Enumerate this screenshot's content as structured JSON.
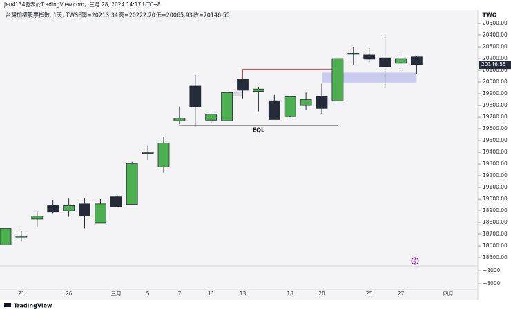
{
  "header": {
    "byline": "jen4134發表於TradingView.com，三月 28, 2024 14:17 UTC+8",
    "symbol": "台灣加權股票指數, 1天, TWSE",
    "ohlc": [
      "開=20213.34",
      "高=20222.20",
      "低=20065.93",
      "收=20146.55"
    ],
    "exchange_badge": "TWO",
    "brand": "TradingView"
  },
  "chart_data": {
    "type": "candlestick",
    "categories": [
      null,
      "21",
      null,
      null,
      "26",
      null,
      null,
      "三月",
      null,
      "5",
      null,
      "7",
      null,
      "11",
      null,
      "13",
      null,
      null,
      "18",
      null,
      "20",
      null,
      null,
      "25",
      null,
      "27",
      null,
      null,
      "四月"
    ],
    "open": [
      18610,
      18680,
      18830,
      18950,
      18900,
      18960,
      18795,
      19020,
      18955,
      19395,
      19275,
      19670,
      19965,
      19675,
      19670,
      20025,
      19920,
      19840,
      19705,
      19800,
      19875,
      19840,
      20240,
      20230,
      20205,
      20160,
      20213.34,
      null,
      null
    ],
    "high": [
      18750,
      18730,
      18895,
      18990,
      19005,
      19010,
      19000,
      19030,
      19320,
      19455,
      19530,
      19790,
      20060,
      19730,
      19915,
      20030,
      19960,
      19890,
      19880,
      19910,
      19985,
      20200,
      20300,
      20290,
      20400,
      20250,
      20222.2,
      null,
      null
    ],
    "low": [
      18610,
      18640,
      18760,
      18880,
      18850,
      18750,
      18795,
      18930,
      18955,
      19335,
      19225,
      19640,
      19620,
      19650,
      19670,
      19855,
      19750,
      19680,
      19700,
      19760,
      19730,
      19840,
      20145,
      20170,
      19960,
      20100,
      20065.93,
      null,
      null
    ],
    "close": [
      18750,
      18685,
      18855,
      18890,
      18945,
      18860,
      18960,
      18935,
      19305,
      19400,
      19480,
      19690,
      19790,
      19725,
      19910,
      19930,
      19940,
      19680,
      19875,
      19850,
      19775,
      20200,
      20245,
      20195,
      20130,
      20200,
      20146.55,
      null,
      null
    ],
    "up_color": "#4caf50",
    "down_color": "#262b39",
    "ylim": [
      18465,
      20612
    ],
    "yticks": [
      {
        "value": 18500,
        "label": "18500.00"
      },
      {
        "value": 18600,
        "label": "18600.00"
      },
      {
        "value": 18700,
        "label": "18700.00"
      },
      {
        "value": 18800,
        "label": "18800.00"
      },
      {
        "value": 18900,
        "label": "18900.00"
      },
      {
        "value": 19000,
        "label": "19000.00"
      },
      {
        "value": 19100,
        "label": "19100.00"
      },
      {
        "value": 19200,
        "label": "19200.00"
      },
      {
        "value": 19300,
        "label": "19300.00"
      },
      {
        "value": 19400,
        "label": "19400.00"
      },
      {
        "value": 19500,
        "label": "19500.00"
      },
      {
        "value": 19600,
        "label": "19600.00"
      },
      {
        "value": 19700,
        "label": "19700.00"
      },
      {
        "value": 19800,
        "label": "19800.00"
      },
      {
        "value": 19900,
        "label": "19900.00"
      },
      {
        "value": 20000,
        "label": "20000.00"
      },
      {
        "value": 20100,
        "label": "20100.00"
      },
      {
        "value": 20200,
        "label": "20200.00"
      },
      {
        "value": 20300,
        "label": "20300.00"
      },
      {
        "value": 20400,
        "label": "20400.00"
      },
      {
        "value": 20500,
        "label": "20500.00"
      }
    ],
    "annotations": {
      "eql_label": "EQL",
      "eql_level": 19630,
      "high_level": 20110,
      "zone": [
        19995,
        20080
      ],
      "gap": [
        19880,
        19915
      ]
    },
    "pane2": {
      "ylim": [
        -3420,
        -1630
      ],
      "yticks": [
        {
          "value": -2000,
          "label": "−2000"
        },
        {
          "value": -3000,
          "label": "−3000"
        }
      ]
    }
  }
}
